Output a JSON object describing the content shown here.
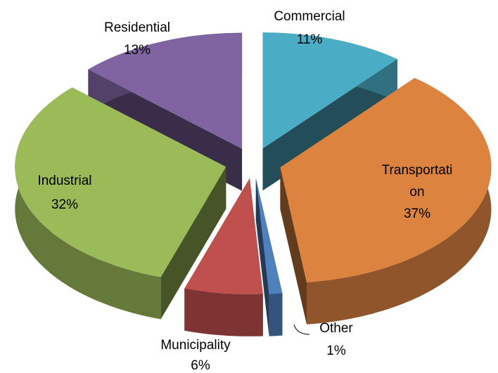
{
  "chart_data": {
    "type": "pie",
    "categories": [
      "Commercial",
      "Transportation",
      "Other",
      "Municipality",
      "Industrial",
      "Residential"
    ],
    "values": [
      11,
      37,
      1,
      6,
      32,
      13
    ],
    "value_labels": [
      "11%",
      "37%",
      "1%",
      "6%",
      "32%",
      "13%"
    ],
    "colors": [
      "#4bacc6",
      "#dd8340",
      "#4f81bd",
      "#c0504d",
      "#9bbb59",
      "#8064a2"
    ]
  }
}
